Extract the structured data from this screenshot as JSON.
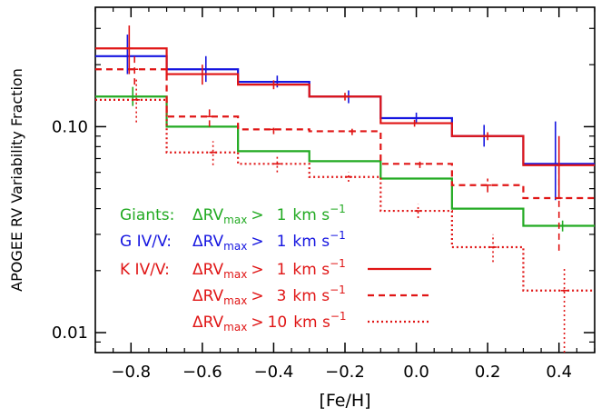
{
  "chart_data": {
    "type": "line",
    "title": "",
    "xlabel": "[Fe/H]",
    "ylabel": "APOGEE RV Variability Fraction",
    "xlim": [
      -0.9,
      0.5
    ],
    "ylim": [
      0.008,
      0.38
    ],
    "yscale": "log",
    "grid": false,
    "x_ticks": [
      -0.8,
      -0.6,
      -0.4,
      -0.2,
      0.0,
      0.2,
      0.4
    ],
    "x_tick_labels": [
      "−0.8",
      "−0.6",
      "−0.4",
      "−0.2",
      "0.0",
      "0.2",
      "0.4"
    ],
    "y_ticks": [
      0.01,
      0.1
    ],
    "y_tick_labels": [
      "0.01",
      "0.10"
    ],
    "bin_edges": [
      -0.9,
      -0.7,
      -0.5,
      -0.3,
      -0.1,
      0.1,
      0.3,
      0.5
    ],
    "series": [
      {
        "name": "Giants: ΔRVmax > 1 km s⁻¹",
        "color": "#22aa22",
        "dash": "solid",
        "x": [
          -0.795,
          -0.6,
          -0.4,
          -0.2,
          0.0,
          0.2,
          0.41
        ],
        "values": [
          0.14,
          0.1,
          0.076,
          0.068,
          0.056,
          0.04,
          0.033
        ],
        "err_low": [
          0.014,
          0.0,
          0.0,
          0.0,
          0.0,
          0.0,
          0.002
        ],
        "err_high": [
          0.016,
          0.0,
          0.0,
          0.0,
          0.0,
          0.0,
          0.002
        ]
      },
      {
        "name": "G IV/V: ΔRVmax > 1 km s⁻¹",
        "color": "#1515e0",
        "dash": "solid",
        "x": [
          -0.81,
          -0.59,
          -0.39,
          -0.19,
          0.0,
          0.19,
          0.39
        ],
        "values": [
          0.22,
          0.19,
          0.165,
          0.14,
          0.11,
          0.09,
          0.066
        ],
        "err_low": [
          0.04,
          0.025,
          0.01,
          0.01,
          0.007,
          0.01,
          0.022
        ],
        "err_high": [
          0.06,
          0.03,
          0.012,
          0.01,
          0.007,
          0.012,
          0.04
        ]
      },
      {
        "name": "K IV/V: ΔRVmax > 1 km s⁻¹",
        "color": "#e01515",
        "dash": "solid",
        "x": [
          -0.805,
          -0.6,
          -0.4,
          -0.2,
          -0.005,
          0.2,
          0.4
        ],
        "values": [
          0.24,
          0.18,
          0.16,
          0.14,
          0.104,
          0.09,
          0.065
        ],
        "err_low": [
          0.06,
          0.02,
          0.008,
          0.006,
          0.004,
          0.004,
          0.02
        ],
        "err_high": [
          0.07,
          0.02,
          0.008,
          0.006,
          0.004,
          0.004,
          0.025
        ]
      },
      {
        "name": "ΔRVmax > 3 km s⁻¹",
        "color": "#e01515",
        "dash": "dashed",
        "x": [
          -0.79,
          -0.58,
          -0.4,
          -0.18,
          0.01,
          0.2,
          0.4
        ],
        "values": [
          0.19,
          0.112,
          0.097,
          0.095,
          0.066,
          0.052,
          0.045
        ],
        "err_low": [
          0.03,
          0.012,
          0.005,
          0.004,
          0.003,
          0.004,
          0.02
        ],
        "err_high": [
          0.035,
          0.015,
          0.005,
          0.004,
          0.003,
          0.004,
          0.02
        ]
      },
      {
        "name": "ΔRVmax > 10 km s⁻¹",
        "color": "#e01515",
        "dash": "dotted",
        "x": [
          -0.785,
          -0.57,
          -0.39,
          -0.19,
          0.005,
          0.215,
          0.415
        ],
        "values": [
          0.135,
          0.075,
          0.066,
          0.057,
          0.039,
          0.026,
          0.016
        ],
        "err_low": [
          0.03,
          0.01,
          0.006,
          0.003,
          0.003,
          0.004,
          0.008
        ],
        "err_high": [
          0.035,
          0.01,
          0.006,
          0.003,
          0.003,
          0.004,
          0.005
        ]
      }
    ],
    "legend": {
      "placement": "lower-left",
      "entries": [
        {
          "group": "Giants:",
          "quantity": "ΔRV",
          "sub": "max",
          "cmp": ">",
          "value": "1",
          "unit": "km s",
          "exp": "−1",
          "color": "#22aa22",
          "sample_line": "none"
        },
        {
          "group": "G IV/V:",
          "quantity": "ΔRV",
          "sub": "max",
          "cmp": ">",
          "value": "1",
          "unit": "km s",
          "exp": "−1",
          "color": "#1515e0",
          "sample_line": "none"
        },
        {
          "group": "K IV/V:",
          "quantity": "ΔRV",
          "sub": "max",
          "cmp": ">",
          "value": "1",
          "unit": "km s",
          "exp": "−1",
          "color": "#e01515",
          "sample_line": "solid"
        },
        {
          "group": "",
          "quantity": "ΔRV",
          "sub": "max",
          "cmp": ">",
          "value": "3",
          "unit": "km s",
          "exp": "−1",
          "color": "#e01515",
          "sample_line": "dashed"
        },
        {
          "group": "",
          "quantity": "ΔRV",
          "sub": "max",
          "cmp": ">",
          "value": "10",
          "unit": "km s",
          "exp": "−1",
          "color": "#e01515",
          "sample_line": "dotted"
        }
      ]
    }
  }
}
